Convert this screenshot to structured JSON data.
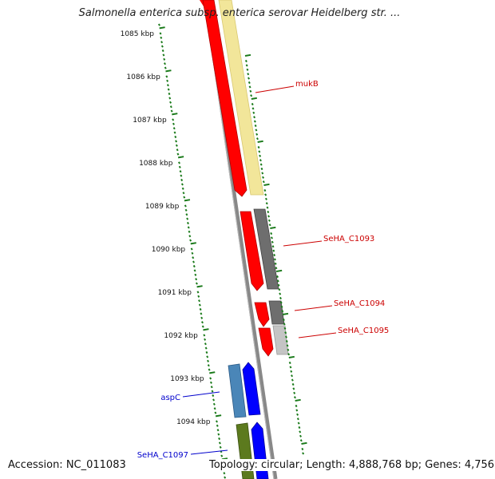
{
  "title": "Salmonella enterica subsp. enterica serovar Heidelberg str. ...",
  "accession_label": "Accession: NC_011083",
  "topology_label": "Topology: circular; Length: 4,888,768 bp; Genes: 4,756",
  "colors": {
    "tick": "#1a7a1a",
    "red_gene": "#ff0000",
    "yellow_gene": "#f2e69a",
    "gray_gene": "#6e6e6e",
    "light_gray_gene": "#c4c4c4",
    "blue_gene": "#0000ff",
    "steel_gene": "#4a86b8",
    "olive_gene": "#5c7a1e",
    "red_label": "#cc0000",
    "blue_label": "#0000cc"
  },
  "ruler": {
    "major_ticks": [
      "1085 kbp",
      "1086 kbp",
      "1087 kbp",
      "1088 kbp",
      "1089 kbp",
      "1090 kbp",
      "1091 kbp",
      "1092 kbp",
      "1093 kbp",
      "1094 kbp"
    ]
  },
  "gene_labels": [
    {
      "text": "mukB",
      "color": "red"
    },
    {
      "text": "SeHA_C1093",
      "color": "red"
    },
    {
      "text": "SeHA_C1094",
      "color": "red"
    },
    {
      "text": "SeHA_C1095",
      "color": "red"
    },
    {
      "text": "aspC",
      "color": "blue"
    },
    {
      "text": "SeHA_C1097",
      "color": "blue"
    }
  ]
}
